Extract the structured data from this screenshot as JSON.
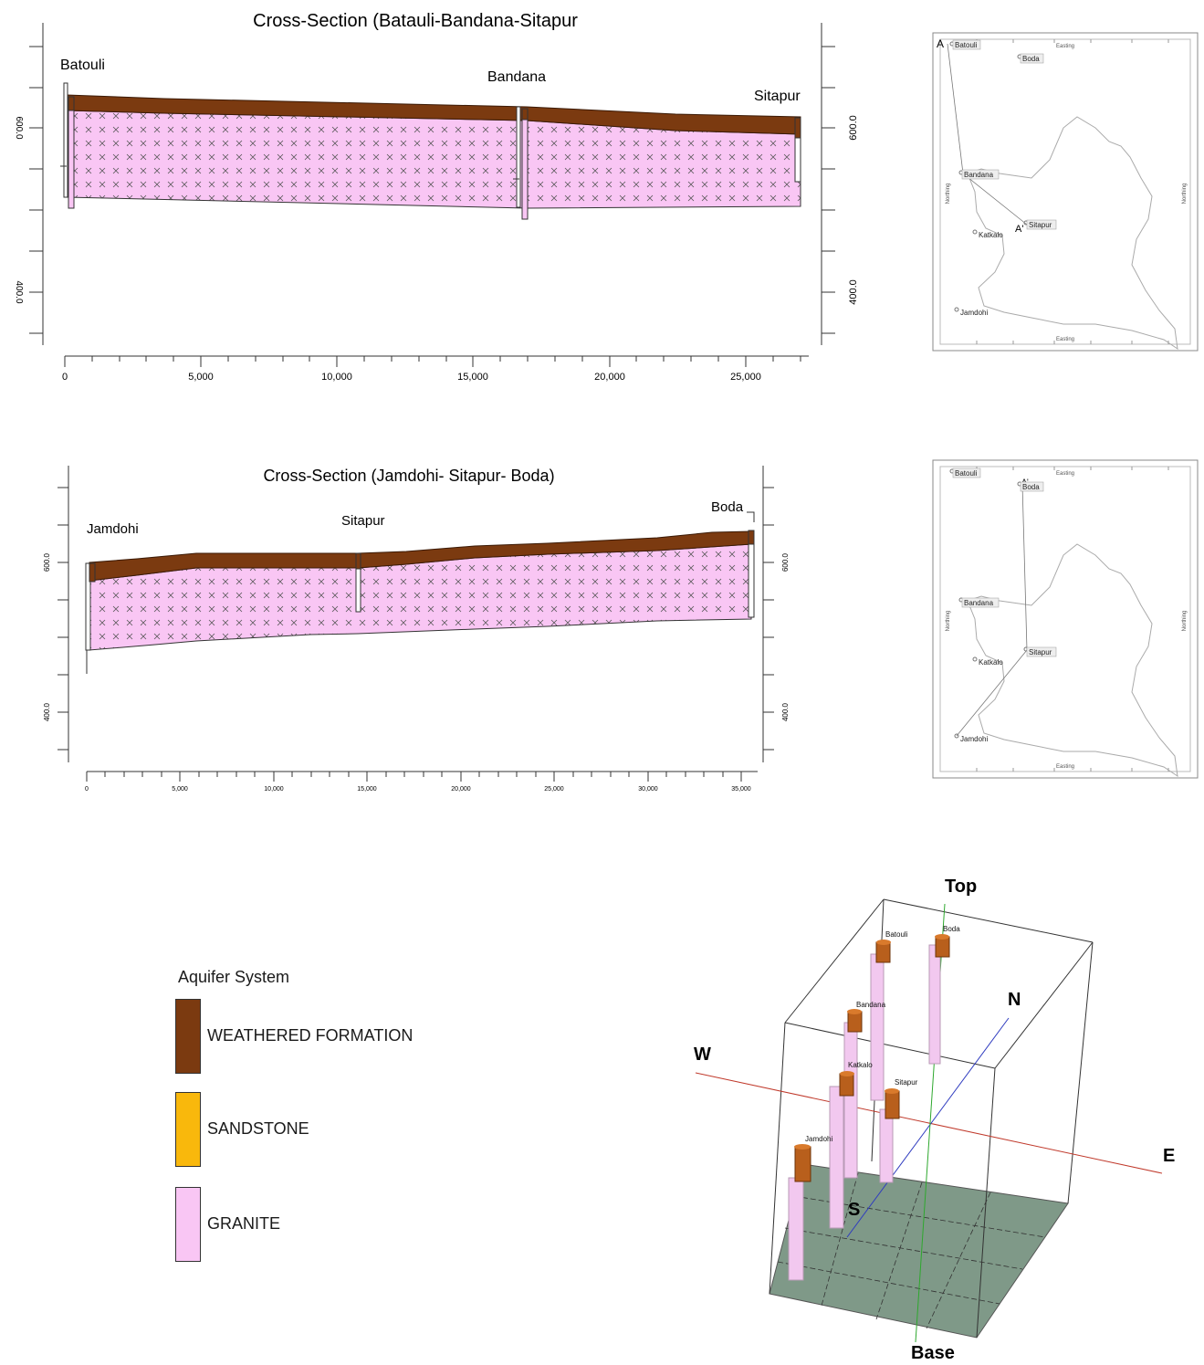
{
  "colors": {
    "weathered": "#7b3a10",
    "sandstone": "#f9b80c",
    "granite": "#f9c6f4",
    "outline": "#333333",
    "grid_floor": "#7f9988",
    "axis_we": "#c0392b",
    "axis_ns": "#2e3bbf",
    "axis_tb": "#2ea82e"
  },
  "section1": {
    "title": "Cross-Section (Batauli-Bandana-Sitapur",
    "left_labels": [
      "600.0",
      "400.0"
    ],
    "right_labels": [
      "600.0",
      "400.0"
    ],
    "x_ticks": [
      "0",
      "5,000",
      "10,000",
      "15,000",
      "20,000",
      "25,000"
    ],
    "wells": [
      {
        "name": "Batouli",
        "dist": 0
      },
      {
        "name": "Bandana",
        "dist": 16800
      },
      {
        "name": "Sitapur",
        "dist": 27000
      }
    ]
  },
  "section2": {
    "title": "Cross-Section (Jamdohi- Sitapur- Boda)",
    "left_labels": [
      "600.0",
      "400.0"
    ],
    "right_labels": [
      "600.0",
      "400.0"
    ],
    "x_ticks": [
      "0",
      "5,000",
      "10,000",
      "15,000",
      "20,000",
      "25,000",
      "30,000",
      "35,000"
    ],
    "wells": [
      {
        "name": "Jamdohi",
        "dist": 200
      },
      {
        "name": "Sitapur",
        "dist": 14500
      },
      {
        "name": "Boda",
        "dist": 35500
      }
    ]
  },
  "map1": {
    "top_label": "Easting",
    "bottom_label": "Easting",
    "side_label": "Northing",
    "section_start": "A",
    "section_end": "A'",
    "places": [
      "Batouli",
      "Boda",
      "Bandana",
      "Sitapur",
      "Katkalo",
      "Jamdohi"
    ]
  },
  "map2": {
    "top_label": "Easting",
    "bottom_label": "Easting",
    "side_label": "Northing",
    "section_start": "A'",
    "places": [
      "Batouli",
      "Boda",
      "Bandana",
      "Sitapur",
      "Katkalo",
      "Jamdohi"
    ]
  },
  "legend": {
    "title": "Aquifer System",
    "items": [
      {
        "label": "WEATHERED FORMATION",
        "color": "#7b3a10"
      },
      {
        "label": "SANDSTONE",
        "color": "#f9b80c"
      },
      {
        "label": "GRANITE",
        "color": "#f9c6f4"
      }
    ]
  },
  "view3d": {
    "top": "Top",
    "base": "Base",
    "north": "N",
    "south": "S",
    "west": "W",
    "east": "E",
    "wells": [
      "Batouli",
      "Boda",
      "Bandana",
      "Katkalo",
      "Sitapur",
      "Jamdohi"
    ]
  }
}
